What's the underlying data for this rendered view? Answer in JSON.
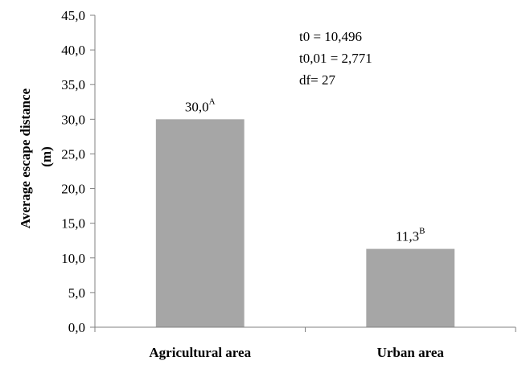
{
  "chart_data": {
    "type": "bar",
    "categories": [
      "Agricultural area",
      "Urban area"
    ],
    "values": [
      30.0,
      11.3
    ],
    "value_labels": [
      "30,0",
      "11,3"
    ],
    "value_superscripts": [
      "A",
      "B"
    ],
    "ylabel_lines": [
      "Average escape distance",
      "(m)"
    ],
    "ylim": [
      0,
      45
    ],
    "yticks": [
      "0,0",
      "5,0",
      "10,0",
      "15,0",
      "20,0",
      "25,0",
      "30,0",
      "35,0",
      "40,0",
      "45,0"
    ],
    "annotations": [
      "t0 = 10,496",
      "t0,01 = 2,771",
      "df= 27"
    ],
    "grid": false,
    "bar_color": "#a6a6a6",
    "axis_color": "#808080"
  }
}
